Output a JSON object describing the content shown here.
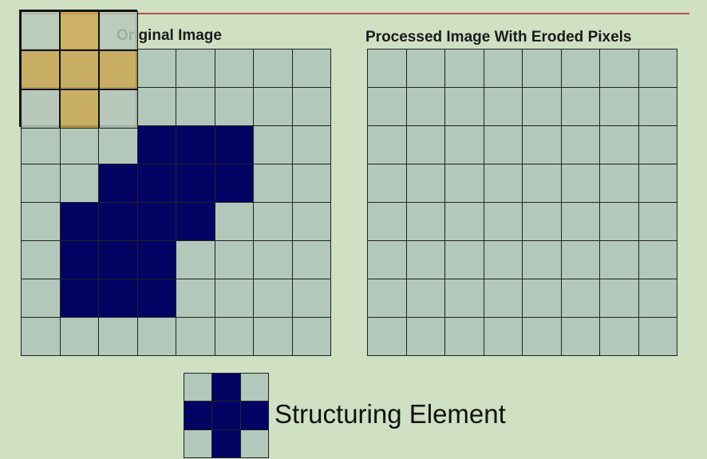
{
  "titles": {
    "original": "Original Image",
    "processed": "Processed Image With Eroded Pixels"
  },
  "structuring_element_label": "Structuring Element",
  "colors": {
    "background": "#cfe0c3",
    "background_pixel": "#b2c8ba",
    "foreground_pixel": "#030364",
    "structuring_overlay": "#cda850",
    "top_rule": "#b0524a"
  },
  "original_grid": [
    [
      0,
      0,
      0,
      0,
      0,
      0,
      0,
      0
    ],
    [
      0,
      0,
      0,
      0,
      0,
      0,
      0,
      0
    ],
    [
      0,
      0,
      0,
      1,
      1,
      1,
      0,
      0
    ],
    [
      0,
      0,
      1,
      1,
      1,
      1,
      0,
      0
    ],
    [
      0,
      1,
      1,
      1,
      1,
      0,
      0,
      0
    ],
    [
      0,
      1,
      1,
      1,
      0,
      0,
      0,
      0
    ],
    [
      0,
      1,
      1,
      1,
      0,
      0,
      0,
      0
    ],
    [
      0,
      0,
      0,
      0,
      0,
      0,
      0,
      0
    ]
  ],
  "processed_grid": [
    [
      0,
      0,
      0,
      0,
      0,
      0,
      0,
      0
    ],
    [
      0,
      0,
      0,
      0,
      0,
      0,
      0,
      0
    ],
    [
      0,
      0,
      0,
      0,
      0,
      0,
      0,
      0
    ],
    [
      0,
      0,
      0,
      0,
      0,
      0,
      0,
      0
    ],
    [
      0,
      0,
      0,
      0,
      0,
      0,
      0,
      0
    ],
    [
      0,
      0,
      0,
      0,
      0,
      0,
      0,
      0
    ],
    [
      0,
      0,
      0,
      0,
      0,
      0,
      0,
      0
    ],
    [
      0,
      0,
      0,
      0,
      0,
      0,
      0,
      0
    ]
  ],
  "overlay_pattern": [
    [
      "pale",
      "gold",
      "pale"
    ],
    [
      "gold",
      "gold",
      "gold"
    ],
    [
      "pale",
      "gold",
      "pale"
    ]
  ],
  "structuring_element": [
    [
      0,
      1,
      0
    ],
    [
      1,
      1,
      1
    ],
    [
      0,
      1,
      0
    ]
  ]
}
